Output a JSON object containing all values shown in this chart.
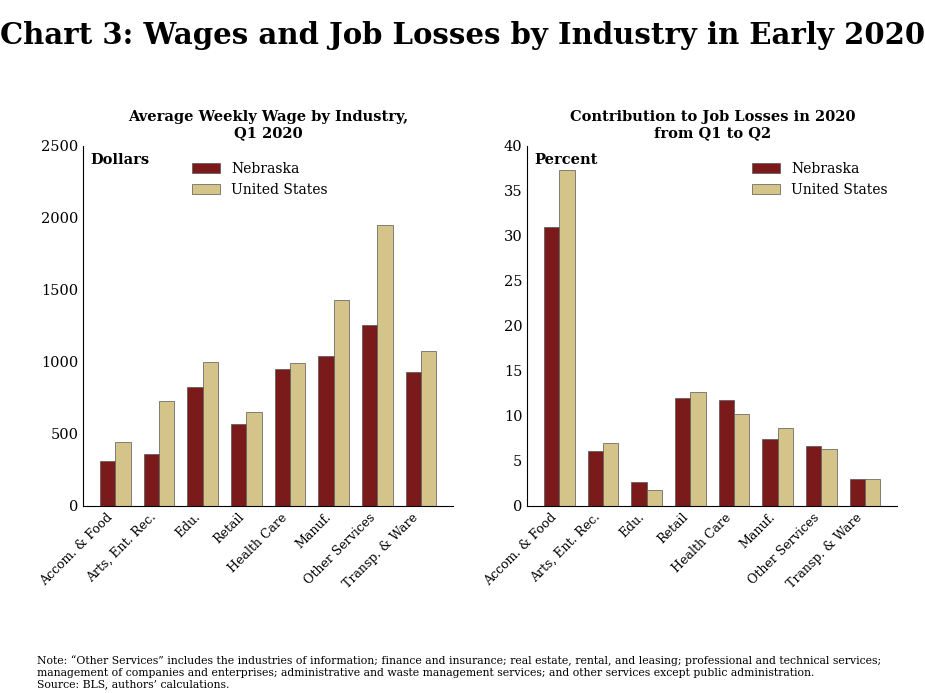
{
  "title": "Chart 3: Wages and Job Losses by Industry in Early 2020",
  "title_fontsize": 21,
  "title_fontweight": "bold",
  "categories": [
    "Accom. & Food",
    "Arts, Ent. Rec.",
    "Edu.",
    "Retail",
    "Health Care",
    "Manuf.",
    "Other Services",
    "Transp. & Ware"
  ],
  "chart1_title": "Average Weekly Wage by Industry,\nQ1 2020",
  "chart1_ylabel": "Dollars",
  "chart1_ylim": [
    0,
    2500
  ],
  "chart1_yticks": [
    0,
    500,
    1000,
    1500,
    2000,
    2500
  ],
  "chart1_nebraska": [
    310,
    360,
    825,
    565,
    950,
    1040,
    1255,
    930
  ],
  "chart1_us": [
    440,
    730,
    1000,
    650,
    990,
    1430,
    1950,
    1075
  ],
  "chart2_title": "Contribution to Job Losses in 2020\nfrom Q1 to Q2",
  "chart2_ylabel": "Percent",
  "chart2_ylim": [
    0,
    40
  ],
  "chart2_yticks": [
    0,
    5,
    10,
    15,
    20,
    25,
    30,
    35,
    40
  ],
  "chart2_nebraska": [
    31.0,
    6.1,
    2.6,
    12.0,
    11.8,
    7.4,
    6.7,
    3.0
  ],
  "chart2_us": [
    37.3,
    7.0,
    1.8,
    12.6,
    10.2,
    8.7,
    6.3,
    3.0
  ],
  "nebraska_color": "#7B1A1A",
  "us_color": "#D4C48A",
  "bar_edge_color": "#555555",
  "bar_linewidth": 0.5,
  "legend_nebraska": "Nebraska",
  "legend_us": "United States",
  "note_text": "Note: “Other Services” includes the industries of information; finance and insurance; real estate, rental, and leasing; professional and technical services;\nmanagement of companies and enterprises; administrative and waste management services; and other services except public administration.\nSource: BLS, authors’ calculations.",
  "bg_color": "#FFFFFF",
  "plot_bg_color": "#FFFFFF"
}
